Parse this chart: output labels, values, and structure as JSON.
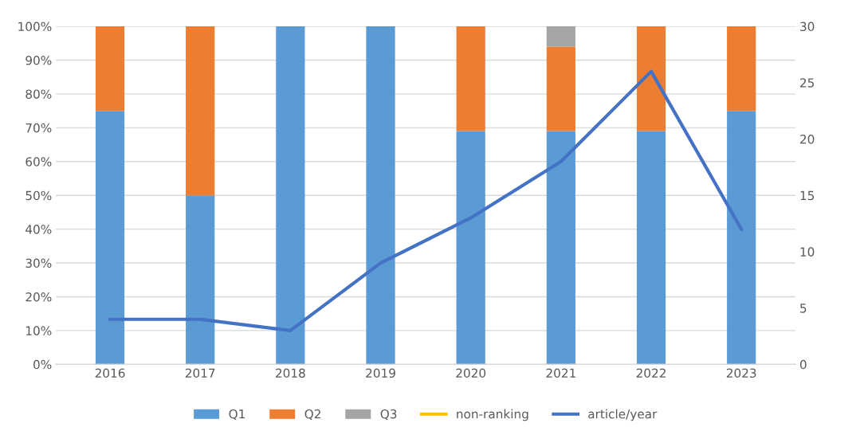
{
  "chart_data": {
    "type": "bar",
    "stacked": true,
    "categories": [
      "2016",
      "2017",
      "2018",
      "2019",
      "2020",
      "2021",
      "2022",
      "2023"
    ],
    "series": [
      {
        "name": "Q1",
        "color": "#5b9bd5",
        "values": [
          75,
          50,
          100,
          100,
          69,
          69,
          69,
          75
        ]
      },
      {
        "name": "Q2",
        "color": "#ed7d31",
        "values": [
          25,
          50,
          0,
          0,
          31,
          25,
          31,
          25
        ]
      },
      {
        "name": "Q3",
        "color": "#a5a5a5",
        "values": [
          0,
          0,
          0,
          0,
          0,
          6,
          0,
          0
        ]
      },
      {
        "name": "non-ranking",
        "type": "line",
        "color": "#ffc000",
        "values": [
          null,
          null,
          null,
          null,
          null,
          null,
          null,
          null
        ]
      },
      {
        "name": "article/year",
        "type": "line",
        "axis": "y2",
        "color": "#4472c4",
        "values": [
          4,
          4,
          3,
          9,
          13,
          18,
          26,
          12
        ]
      }
    ],
    "ylim": [
      0,
      100
    ],
    "yticks": [
      {
        "value": 0,
        "label": "0%"
      },
      {
        "value": 10,
        "label": "10%"
      },
      {
        "value": 20,
        "label": "20%"
      },
      {
        "value": 30,
        "label": "30%"
      },
      {
        "value": 40,
        "label": "40%"
      },
      {
        "value": 50,
        "label": "50%"
      },
      {
        "value": 60,
        "label": "60%"
      },
      {
        "value": 70,
        "label": "70%"
      },
      {
        "value": 80,
        "label": "80%"
      },
      {
        "value": 90,
        "label": "90%"
      },
      {
        "value": 100,
        "label": "100%"
      }
    ],
    "y2lim": [
      0,
      30
    ],
    "y2ticks": [
      0,
      5,
      10,
      15,
      20,
      25,
      30
    ],
    "grid": "y",
    "legend": "bottom",
    "marker": "none",
    "line_style": "solid"
  }
}
